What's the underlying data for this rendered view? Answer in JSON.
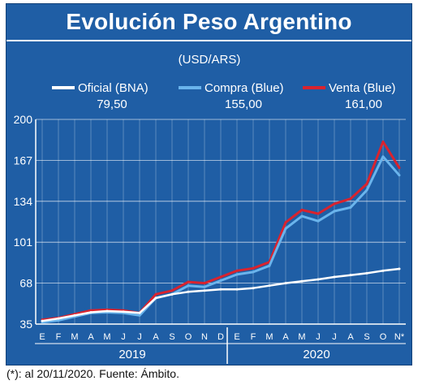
{
  "chart_data": {
    "type": "line",
    "title": "Evolución Peso Argentino",
    "subtitle": "(USD/ARS)",
    "footnote": "(*): al 20/11/2020. Fuente: Ámbito.",
    "y_ticks": [
      35,
      68,
      101,
      134,
      167,
      200
    ],
    "ylim": [
      35,
      200
    ],
    "x_month_labels": [
      "E",
      "F",
      "M",
      "A",
      "M",
      "J",
      "J",
      "A",
      "S",
      "O",
      "N",
      "D",
      "E",
      "F",
      "M",
      "A",
      "M",
      "J",
      "J",
      "A",
      "S",
      "O",
      "N*"
    ],
    "years": [
      "2019",
      "2020"
    ],
    "grid": true,
    "legend_placement": "top",
    "x": [
      "2019-01",
      "2019-02",
      "2019-03",
      "2019-04",
      "2019-05",
      "2019-06",
      "2019-07",
      "2019-08",
      "2019-09",
      "2019-10",
      "2019-11",
      "2019-12",
      "2020-01",
      "2020-02",
      "2020-03",
      "2020-04",
      "2020-05",
      "2020-06",
      "2020-07",
      "2020-08",
      "2020-09",
      "2020-10",
      "2020-11"
    ],
    "series": [
      {
        "name": "Oficial (BNA)",
        "last_value": "79,50",
        "color": "#ffffff",
        "values": [
          37.5,
          39.5,
          42.0,
          44.5,
          45.5,
          45.0,
          44.0,
          56.0,
          59.0,
          61.0,
          62.0,
          63.0,
          63.0,
          64.0,
          66.0,
          68.0,
          69.5,
          71.0,
          73.0,
          74.5,
          76.0,
          78.0,
          79.5
        ]
      },
      {
        "name": "Compra (Blue)",
        "last_value": "155,00",
        "color": "#6ab4ec",
        "values": [
          36.5,
          38.0,
          41.0,
          44.0,
          44.5,
          44.0,
          42.0,
          56.0,
          59.0,
          66.0,
          65.0,
          70.0,
          75.0,
          77.0,
          82.0,
          112.0,
          122.0,
          118.0,
          126.0,
          129.0,
          143.0,
          170.0,
          155.0
        ]
      },
      {
        "name": "Venta (Blue)",
        "last_value": "161,00",
        "color": "#d9232e",
        "values": [
          38.5,
          40.0,
          43.0,
          46.0,
          46.5,
          46.0,
          44.0,
          59.0,
          62.0,
          69.0,
          68.0,
          73.0,
          78.0,
          80.0,
          85.0,
          117.0,
          127.0,
          124.0,
          132.0,
          136.0,
          148.0,
          182.0,
          161.0
        ]
      }
    ]
  }
}
